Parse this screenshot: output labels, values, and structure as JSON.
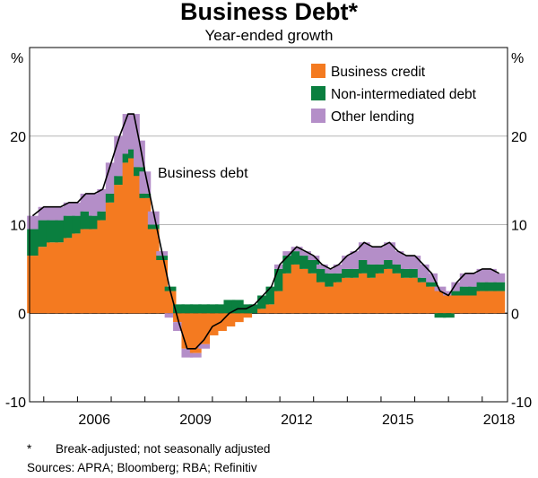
{
  "chart_data": {
    "type": "area",
    "title": "Business Debt*",
    "subtitle": "Year-ended growth",
    "y_unit_left": "%",
    "y_unit_right": "%",
    "ylim": [
      -10,
      30
    ],
    "y_ticks": [
      -10,
      0,
      10,
      20
    ],
    "xlim": [
      2004.58,
      2018.75
    ],
    "x_ticks": [
      2006,
      2009,
      2012,
      2015,
      2018
    ],
    "grid": true,
    "legend_position": "top-right",
    "colors": {
      "business_credit": "#f47a20",
      "non_intermediated": "#0a7f3f",
      "other_lending": "#b48ec8",
      "total_line": "#000000"
    },
    "legend": [
      {
        "key": "business_credit",
        "label": "Business credit"
      },
      {
        "key": "non_intermediated",
        "label": "Non-intermediated debt"
      },
      {
        "key": "other_lending",
        "label": "Other lending"
      }
    ],
    "annotations": [
      {
        "text": "Business debt"
      }
    ],
    "x": [
      2004.67,
      2005.0,
      2005.25,
      2005.5,
      2005.75,
      2006.0,
      2006.25,
      2006.5,
      2006.75,
      2007.0,
      2007.25,
      2007.5,
      2007.67,
      2007.83,
      2008.0,
      2008.25,
      2008.5,
      2008.75,
      2009.0,
      2009.25,
      2009.5,
      2009.75,
      2010.0,
      2010.25,
      2010.5,
      2010.75,
      2011.0,
      2011.25,
      2011.5,
      2011.75,
      2012.0,
      2012.25,
      2012.5,
      2012.75,
      2013.0,
      2013.25,
      2013.5,
      2013.75,
      2014.0,
      2014.25,
      2014.5,
      2014.75,
      2015.0,
      2015.25,
      2015.5,
      2015.75,
      2016.0,
      2016.25,
      2016.5,
      2016.75,
      2017.0,
      2017.25,
      2017.5,
      2017.75,
      2018.0,
      2018.25,
      2018.5
    ],
    "series": [
      {
        "name": "Business credit",
        "values": [
          6.5,
          7.5,
          8.0,
          8.0,
          8.5,
          9.0,
          9.5,
          9.5,
          10.5,
          12.5,
          14.5,
          17.0,
          17.5,
          15.5,
          13.0,
          9.5,
          6.0,
          2.5,
          -1.0,
          -4.0,
          -4.5,
          -3.5,
          -2.5,
          -2.0,
          -1.5,
          -1.0,
          -0.5,
          0.0,
          0.5,
          1.0,
          2.5,
          4.5,
          5.5,
          5.0,
          4.5,
          3.5,
          3.0,
          3.5,
          4.0,
          4.0,
          4.5,
          4.0,
          4.5,
          5.0,
          4.5,
          4.0,
          4.0,
          3.5,
          3.0,
          2.5,
          2.0,
          2.0,
          2.0,
          2.0,
          2.5,
          2.5,
          2.5
        ]
      },
      {
        "name": "Non-intermediated debt",
        "values": [
          3.0,
          3.0,
          2.5,
          2.5,
          2.5,
          2.0,
          2.0,
          1.5,
          1.0,
          1.0,
          1.0,
          1.0,
          1.0,
          1.0,
          0.5,
          0.5,
          0.5,
          0.5,
          1.0,
          1.0,
          1.0,
          1.0,
          1.0,
          1.0,
          1.5,
          1.5,
          1.0,
          1.0,
          1.5,
          2.0,
          2.5,
          2.0,
          1.5,
          1.5,
          1.5,
          1.5,
          1.5,
          1.0,
          1.0,
          1.0,
          1.5,
          1.5,
          1.0,
          1.0,
          1.0,
          1.0,
          1.0,
          0.5,
          0.5,
          -0.5,
          -0.5,
          0.5,
          1.0,
          1.0,
          1.0,
          1.0,
          1.0
        ]
      },
      {
        "name": "Other lending",
        "values": [
          1.5,
          1.5,
          1.5,
          1.5,
          1.5,
          1.5,
          2.0,
          2.5,
          2.5,
          3.5,
          4.5,
          4.5,
          4.0,
          3.0,
          2.5,
          1.5,
          0.5,
          -0.5,
          -1.0,
          -1.0,
          -0.5,
          -0.5,
          0.0,
          0.0,
          0.0,
          0.0,
          0.0,
          0.0,
          0.0,
          0.0,
          0.5,
          0.5,
          0.5,
          0.5,
          0.5,
          0.5,
          0.5,
          1.0,
          1.5,
          2.0,
          2.0,
          2.0,
          2.0,
          2.0,
          1.5,
          1.5,
          1.5,
          1.5,
          1.0,
          0.5,
          0.5,
          1.0,
          1.5,
          1.5,
          1.5,
          1.5,
          1.0
        ]
      }
    ],
    "total_line": {
      "name": "Business debt",
      "values": [
        11.0,
        12.0,
        12.0,
        12.0,
        12.5,
        12.5,
        13.5,
        13.5,
        14.0,
        17.0,
        20.0,
        22.5,
        22.5,
        19.5,
        16.0,
        11.5,
        7.0,
        2.5,
        -1.0,
        -4.0,
        -4.0,
        -3.0,
        -1.5,
        -1.0,
        0.0,
        0.5,
        0.5,
        1.0,
        2.0,
        3.0,
        5.5,
        6.5,
        7.5,
        7.0,
        6.5,
        5.5,
        5.0,
        5.5,
        6.5,
        7.0,
        8.0,
        7.5,
        7.5,
        8.0,
        7.0,
        6.5,
        6.5,
        5.5,
        4.5,
        2.5,
        2.0,
        3.5,
        4.5,
        4.5,
        5.0,
        5.0,
        4.5
      ]
    }
  },
  "footnotes": {
    "marker": "*",
    "note": "Break-adjusted; not seasonally adjusted",
    "sources": "Sources: APRA; Bloomberg; RBA; Refinitiv"
  }
}
